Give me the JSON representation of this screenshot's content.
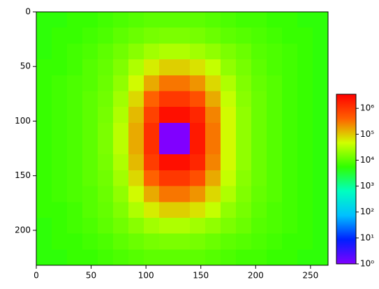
{
  "chart_data": {
    "type": "heatmap",
    "x_edges": [
      0,
      14,
      28,
      42,
      56,
      70,
      84,
      98,
      112,
      126,
      140,
      154,
      168,
      182,
      196,
      210,
      224,
      238,
      252,
      266
    ],
    "y_edges": [
      0,
      14.5,
      29,
      43.5,
      58,
      72.5,
      87,
      101.5,
      116,
      130.5,
      145,
      159.5,
      174,
      188.5,
      203,
      217.5,
      232
    ],
    "values": [
      [
        5000.0,
        5000.0,
        6000.0,
        6000.0,
        7000.0,
        8000.0,
        9000.0,
        10000.0,
        10000.0,
        10000.0,
        10000.0,
        9000.0,
        8000.0,
        7000.0,
        7000.0,
        6000.0,
        6000.0,
        5000.0,
        5000.0
      ],
      [
        5000.0,
        6000.0,
        6000.0,
        7000.0,
        8000.0,
        10000.0,
        12000.0,
        14000.0,
        15000.0,
        15000.0,
        14000.0,
        12000.0,
        10000.0,
        9000.0,
        8000.0,
        7000.0,
        6000.0,
        6000.0,
        5000.0
      ],
      [
        5000.0,
        6000.0,
        7000.0,
        8000.0,
        10000.0,
        13000.0,
        18000.0,
        25000.0,
        30000.0,
        30000.0,
        25000.0,
        20000.0,
        15000.0,
        12000.0,
        9000.0,
        8000.0,
        7000.0,
        6000.0,
        5000.0
      ],
      [
        6000.0,
        6000.0,
        7000.0,
        9000.0,
        11000.0,
        16000.0,
        30000.0,
        60000.0,
        90000.0,
        90000.0,
        70000.0,
        40000.0,
        20000.0,
        14000.0,
        10000.0,
        8000.0,
        7000.0,
        6000.0,
        5000.0
      ],
      [
        6000.0,
        7000.0,
        8000.0,
        9000.0,
        12000.0,
        20000.0,
        50000.0,
        150000.0,
        300000.0,
        300000.0,
        200000.0,
        80000.0,
        30000.0,
        16000.0,
        11000.0,
        9000.0,
        7000.0,
        6000.0,
        5000.0
      ],
      [
        6000.0,
        7000.0,
        8000.0,
        10000.0,
        13000.0,
        25000.0,
        80000.0,
        400000.0,
        1000000.0,
        1000000.0,
        600000.0,
        150000.0,
        40000.0,
        18000.0,
        12000.0,
        9000.0,
        7000.0,
        6000.0,
        5000.0
      ],
      [
        6000.0,
        7000.0,
        8000.0,
        10000.0,
        14000.0,
        30000.0,
        120000.0,
        800000.0,
        2500000.0,
        2500000.0,
        1500000.0,
        250000.0,
        50000.0,
        20000.0,
        12000.0,
        9000.0,
        7000.0,
        6000.0,
        5000.0
      ],
      [
        6000.0,
        7000.0,
        8000.0,
        10000.0,
        15000.0,
        35000.0,
        150000.0,
        1200000.0,
        1,
        1,
        2000000.0,
        300000.0,
        50000.0,
        20000.0,
        12000.0,
        9000.0,
        7000.0,
        6000.0,
        5000.0
      ],
      [
        6000.0,
        7000.0,
        8000.0,
        10000.0,
        15000.0,
        35000.0,
        150000.0,
        1200000.0,
        1,
        1,
        2000000.0,
        300000.0,
        50000.0,
        20000.0,
        12000.0,
        9000.0,
        7000.0,
        6000.0,
        5000.0
      ],
      [
        6000.0,
        7000.0,
        8000.0,
        10000.0,
        14000.0,
        30000.0,
        120000.0,
        900000.0,
        2500000.0,
        2500000.0,
        1500000.0,
        250000.0,
        50000.0,
        20000.0,
        12000.0,
        9000.0,
        7000.0,
        6000.0,
        5000.0
      ],
      [
        6000.0,
        7000.0,
        8000.0,
        10000.0,
        13000.0,
        25000.0,
        80000.0,
        400000.0,
        1000000.0,
        1000000.0,
        600000.0,
        150000.0,
        40000.0,
        18000.0,
        12000.0,
        9000.0,
        7000.0,
        6000.0,
        5000.0
      ],
      [
        6000.0,
        7000.0,
        8000.0,
        9000.0,
        12000.0,
        20000.0,
        50000.0,
        150000.0,
        300000.0,
        300000.0,
        200000.0,
        80000.0,
        30000.0,
        16000.0,
        11000.0,
        9000.0,
        7000.0,
        6000.0,
        5000.0
      ],
      [
        6000.0,
        6000.0,
        7000.0,
        9000.0,
        11000.0,
        16000.0,
        30000.0,
        60000.0,
        90000.0,
        90000.0,
        70000.0,
        40000.0,
        20000.0,
        14000.0,
        10000.0,
        8000.0,
        7000.0,
        6000.0,
        5000.0
      ],
      [
        5000.0,
        6000.0,
        7000.0,
        8000.0,
        10000.0,
        13000.0,
        18000.0,
        25000.0,
        30000.0,
        30000.0,
        25000.0,
        20000.0,
        15000.0,
        12000.0,
        9000.0,
        8000.0,
        7000.0,
        6000.0,
        5000.0
      ],
      [
        5000.0,
        6000.0,
        6000.0,
        7000.0,
        8000.0,
        10000.0,
        12000.0,
        14000.0,
        15000.0,
        15000.0,
        14000.0,
        12000.0,
        10000.0,
        9000.0,
        8000.0,
        7000.0,
        6000.0,
        6000.0,
        5000.0
      ],
      [
        5000.0,
        5000.0,
        6000.0,
        6000.0,
        7000.0,
        8000.0,
        9000.0,
        10000.0,
        10000.0,
        10000.0,
        10000.0,
        9000.0,
        8000.0,
        7000.0,
        7000.0,
        6000.0,
        6000.0,
        5000.0,
        5000.0
      ]
    ],
    "xlim": [
      0,
      266
    ],
    "xticks": [
      0,
      50,
      100,
      150,
      200,
      250
    ],
    "ylim": [
      232,
      0
    ],
    "yticks": [
      0,
      50,
      100,
      150,
      200
    ],
    "colorbar": {
      "scale": "log",
      "lim": [
        1,
        3500000
      ],
      "colormap": [
        "#8000ff",
        "#0020ff",
        "#00c0ff",
        "#00ffc0",
        "#30ff00",
        "#d0ff00",
        "#ff6000",
        "#ff0000"
      ],
      "ticks": [
        {
          "value": 1,
          "label": "10⁰"
        },
        {
          "value": 10,
          "label": "10¹"
        },
        {
          "value": 100,
          "label": "10²"
        },
        {
          "value": 1000,
          "label": "10³"
        },
        {
          "value": 10000,
          "label": "10⁴"
        },
        {
          "value": 100000,
          "label": "10⁵"
        },
        {
          "value": 1000000,
          "label": "10⁶"
        }
      ]
    }
  }
}
